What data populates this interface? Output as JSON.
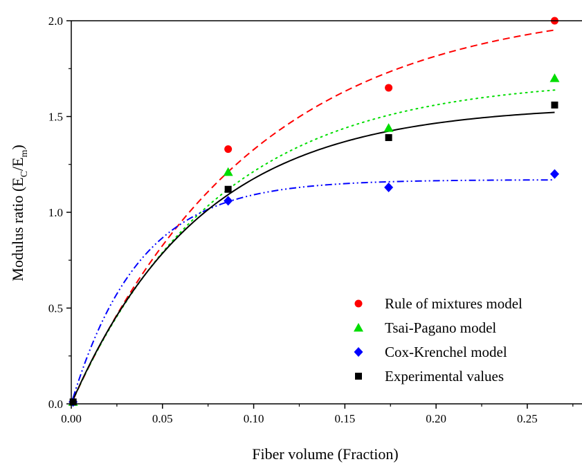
{
  "chart_data": {
    "type": "scatter",
    "xlabel": "Fiber volume (Fraction)",
    "ylabel": {
      "base": "Modulus ratio (E",
      "sub1": "C",
      "mid": "/E",
      "sub2": "m",
      "end": ")"
    },
    "xlim": [
      0,
      0.28
    ],
    "ylim": [
      0,
      2.0
    ],
    "xticks": [
      "0.00",
      "0.05",
      "0.10",
      "0.15",
      "0.20",
      "0.25"
    ],
    "xtick_values": [
      0,
      0.05,
      0.1,
      0.15,
      0.2,
      0.25
    ],
    "yticks": [
      "0.0",
      "0.5",
      "1.0",
      "1.5",
      "2.0"
    ],
    "ytick_values": [
      0,
      0.5,
      1.0,
      1.5,
      2.0
    ],
    "grid": false,
    "legend_position": "bottom-right",
    "series": [
      {
        "name": "Rule of mixtures model",
        "marker": "circle",
        "color": "#ff0000",
        "line_style": "dashed",
        "points": [
          [
            0.001,
            0.01
          ],
          [
            0.086,
            1.33
          ],
          [
            0.174,
            1.65
          ],
          [
            0.265,
            2.0
          ]
        ],
        "fit": {
          "a": 2.1,
          "k": 10.0
        }
      },
      {
        "name": "Tsai-Pagano model",
        "marker": "triangle",
        "color": "#00dd00",
        "line_style": "dotted",
        "points": [
          [
            0.001,
            0.01
          ],
          [
            0.086,
            1.21
          ],
          [
            0.174,
            1.44
          ],
          [
            0.265,
            1.7
          ]
        ],
        "fit": {
          "a": 1.7,
          "k": 12.5
        }
      },
      {
        "name": "Cox-Krenchel model",
        "marker": "diamond",
        "color": "#0000ff",
        "line_style": "dash-dot-dot",
        "points": [
          [
            0.001,
            0.01
          ],
          [
            0.086,
            1.06
          ],
          [
            0.174,
            1.13
          ],
          [
            0.265,
            1.2
          ]
        ],
        "fit": {
          "a": 1.17,
          "k": 27.0
        }
      },
      {
        "name": "Experimental values",
        "marker": "square",
        "color": "#000000",
        "line_style": "solid",
        "points": [
          [
            0.001,
            0.01
          ],
          [
            0.086,
            1.12
          ],
          [
            0.174,
            1.39
          ],
          [
            0.265,
            1.56
          ]
        ],
        "fit": {
          "a": 1.56,
          "k": 14.0
        }
      }
    ]
  }
}
